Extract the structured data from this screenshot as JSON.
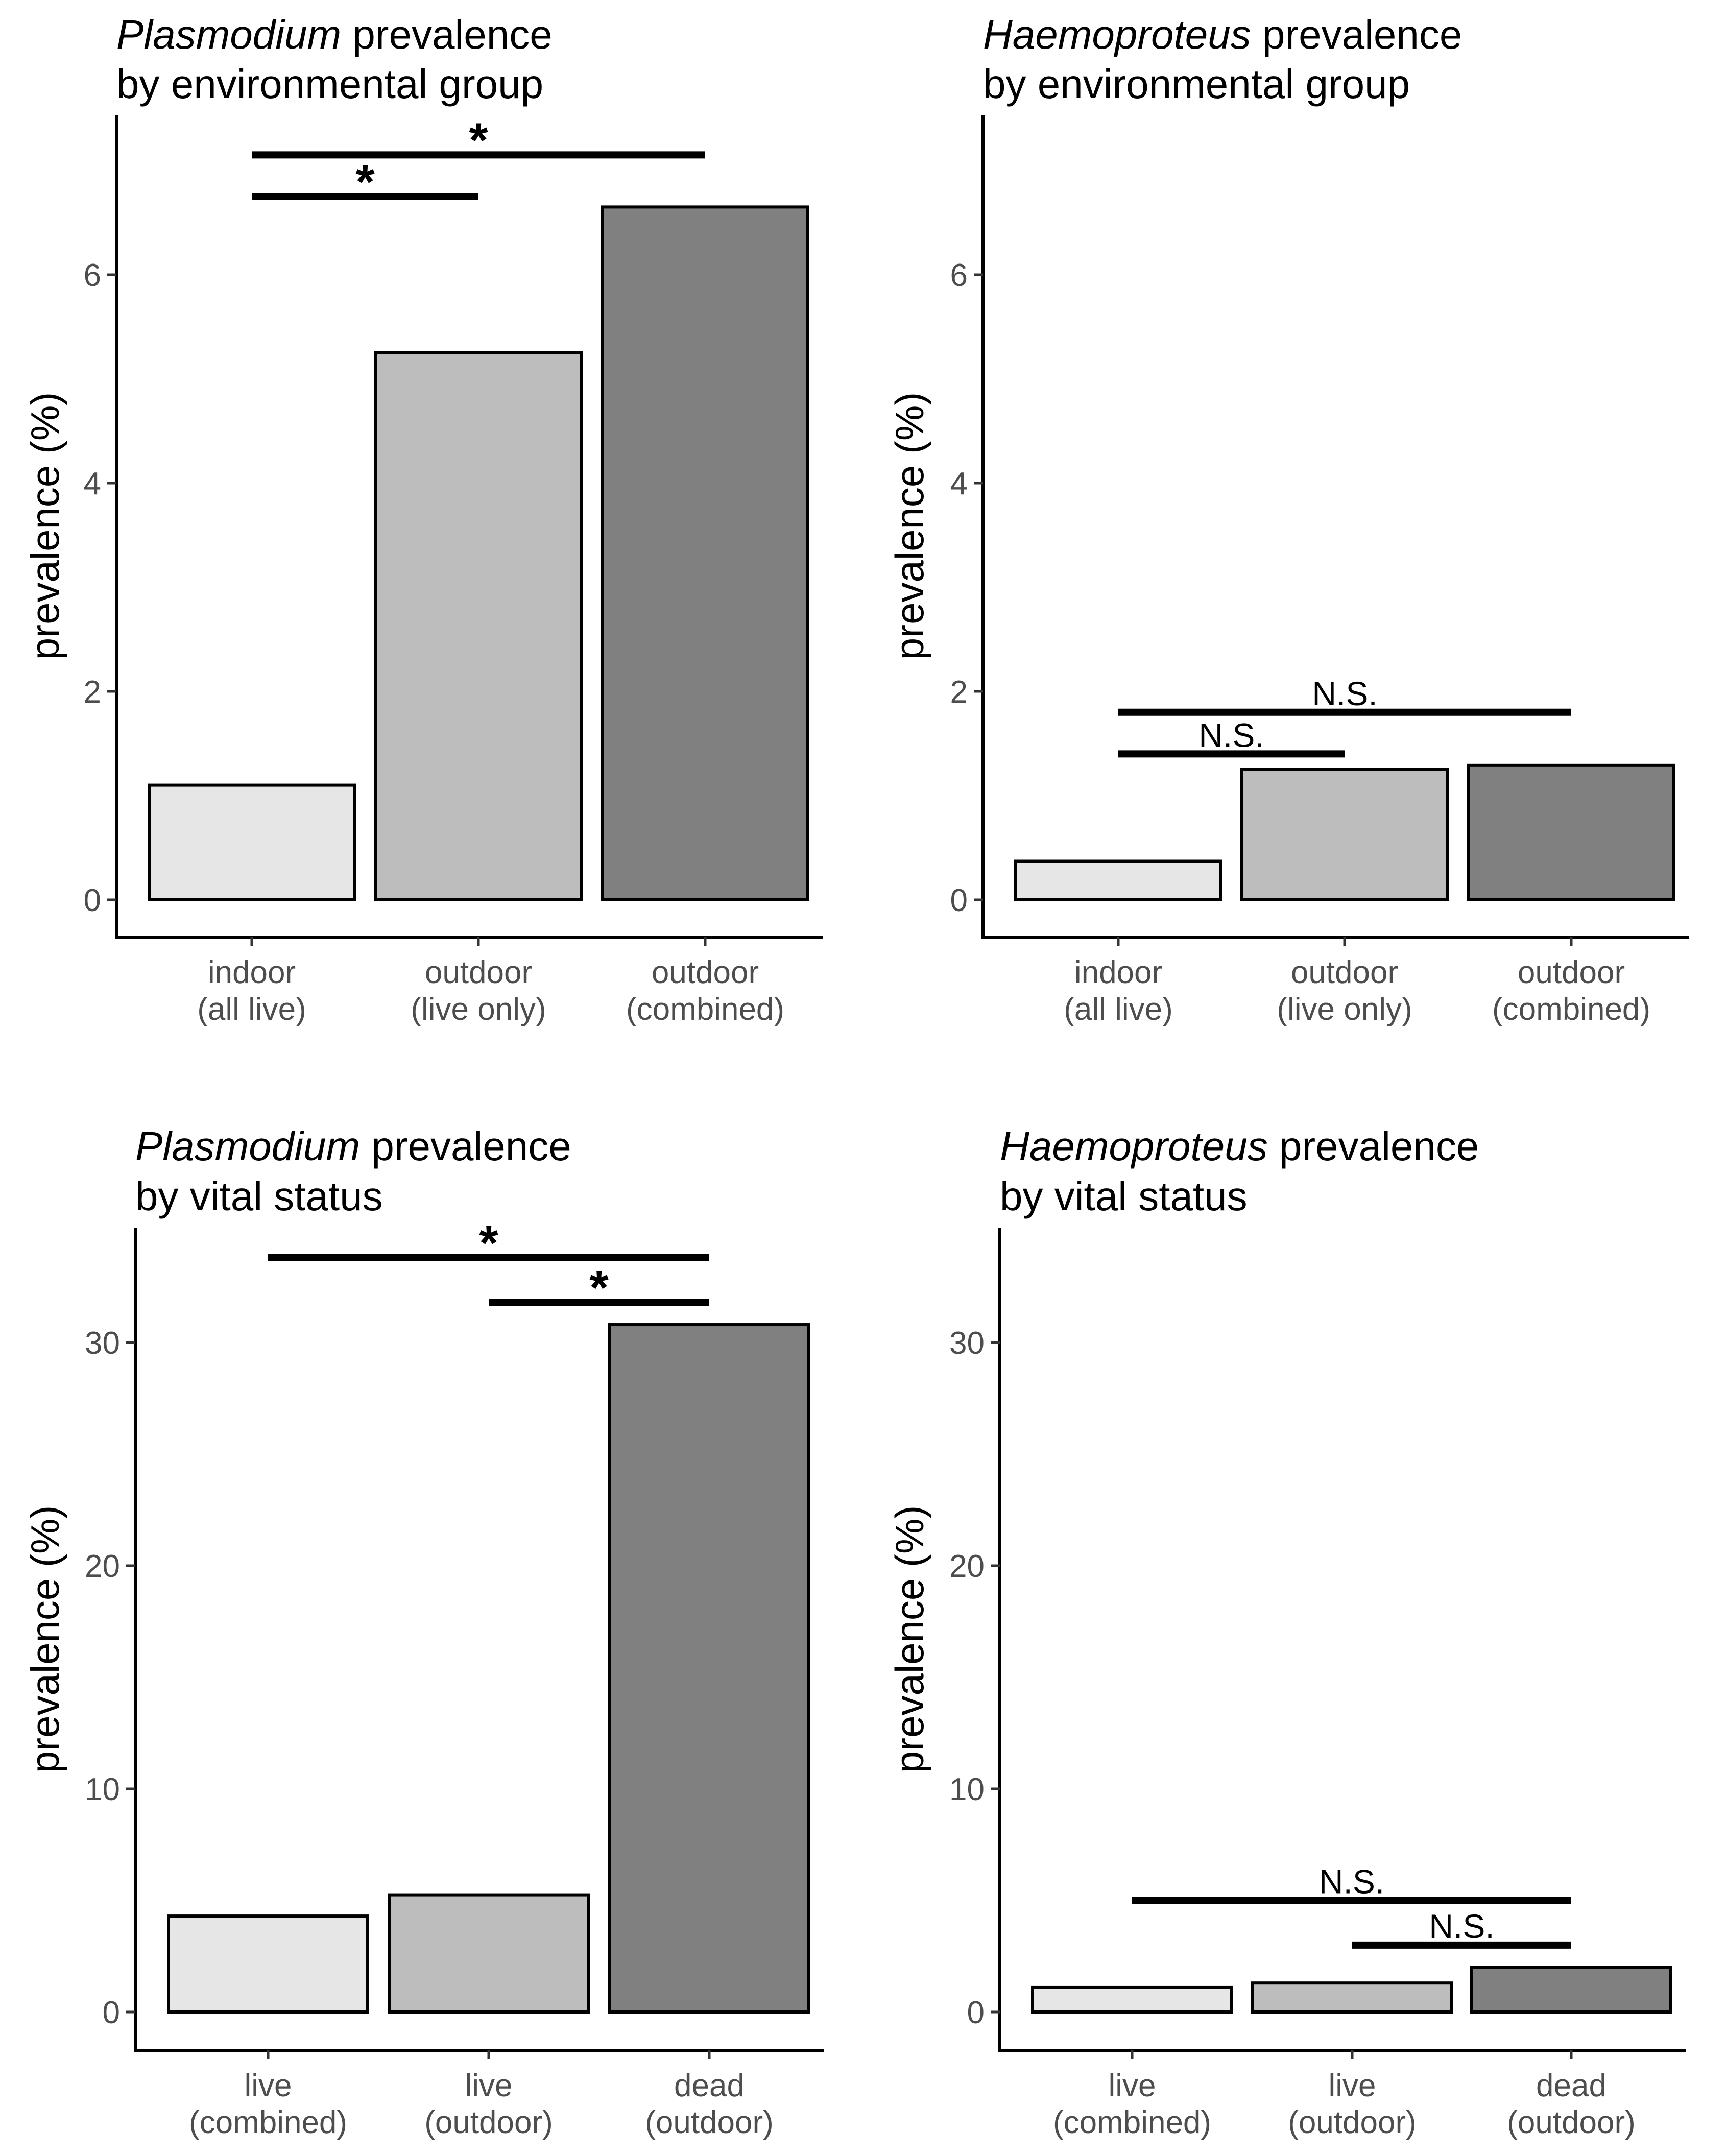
{
  "chart_data": [
    {
      "type": "bar",
      "title": {
        "italic": "Plasmodium",
        "rest": " prevalence",
        "line2": "by environmental group"
      },
      "ylabel": "prevalence (%)",
      "ylim": [
        0,
        7.5
      ],
      "yticks": [
        0,
        2,
        4,
        6
      ],
      "categories": [
        [
          "indoor",
          "(all live)"
        ],
        [
          "outdoor",
          "(live only)"
        ],
        [
          "outdoor",
          "(combined)"
        ]
      ],
      "values": [
        1.1,
        5.25,
        6.65
      ],
      "fills": [
        "#e6e6e6",
        "#bdbdbd",
        "#808080"
      ],
      "brackets": [
        {
          "from": 0,
          "to": 2,
          "y": 7.15,
          "label": "*"
        },
        {
          "from": 0,
          "to": 1,
          "y": 6.75,
          "label": "*"
        }
      ]
    },
    {
      "type": "bar",
      "title": {
        "italic": "Haemoproteus",
        "rest": " prevalence",
        "line2": "by environmental group"
      },
      "ylabel": "prevalence (%)",
      "ylim": [
        0,
        7.5
      ],
      "yticks": [
        0,
        2,
        4,
        6
      ],
      "categories": [
        [
          "indoor",
          "(all live)"
        ],
        [
          "outdoor",
          "(live only)"
        ],
        [
          "outdoor",
          "(combined)"
        ]
      ],
      "values": [
        0.37,
        1.25,
        1.29
      ],
      "fills": [
        "#e6e6e6",
        "#bdbdbd",
        "#808080"
      ],
      "brackets": [
        {
          "from": 0,
          "to": 2,
          "y": 1.8,
          "label": "N.S."
        },
        {
          "from": 0,
          "to": 1,
          "y": 1.4,
          "label": "N.S."
        }
      ]
    },
    {
      "type": "bar",
      "title": {
        "italic": "Plasmodium",
        "rest": " prevalence",
        "line2": "by vital status"
      },
      "ylabel": "prevalence (%)",
      "ylim": [
        0,
        35
      ],
      "yticks": [
        0,
        10,
        20,
        30
      ],
      "categories": [
        [
          "live",
          "(combined)"
        ],
        [
          "live",
          "(outdoor)"
        ],
        [
          "dead",
          "(outdoor)"
        ]
      ],
      "values": [
        4.3,
        5.25,
        30.8
      ],
      "fills": [
        "#e6e6e6",
        "#bdbdbd",
        "#808080"
      ],
      "brackets": [
        {
          "from": 0,
          "to": 2,
          "y": 33.8,
          "label": "*"
        },
        {
          "from": 1,
          "to": 2,
          "y": 31.8,
          "label": "*"
        }
      ]
    },
    {
      "type": "bar",
      "title": {
        "italic": "Haemoproteus",
        "rest": " prevalence",
        "line2": "by vital status"
      },
      "ylabel": "prevalence (%)",
      "ylim": [
        0,
        35
      ],
      "yticks": [
        0,
        10,
        20,
        30
      ],
      "categories": [
        [
          "live",
          "(combined)"
        ],
        [
          "live",
          "(outdoor)"
        ],
        [
          "dead",
          "(outdoor)"
        ]
      ],
      "values": [
        1.1,
        1.3,
        2.0
      ],
      "fills": [
        "#e6e6e6",
        "#bdbdbd",
        "#808080"
      ],
      "brackets": [
        {
          "from": 0,
          "to": 2,
          "y": 5.0,
          "label": "N.S."
        },
        {
          "from": 1,
          "to": 2,
          "y": 3.0,
          "label": "N.S."
        }
      ]
    }
  ]
}
